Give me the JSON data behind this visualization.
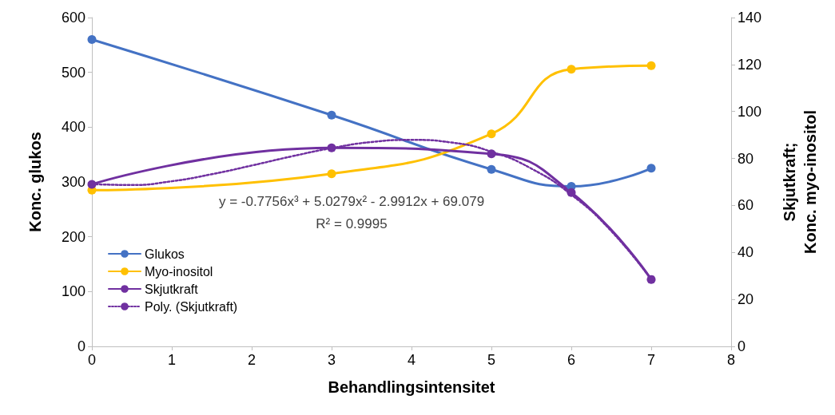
{
  "chart_data": {
    "type": "line",
    "xlabel": "Behandlingsintensitet",
    "ylabel": "Konc. glukos",
    "y2label": "Skjutkraft;\nKonc. myo-inositol",
    "x": [
      0,
      3,
      5,
      6,
      7
    ],
    "series": [
      {
        "name": "Glukos",
        "color": "#4472c4",
        "values": [
          560,
          422,
          323,
          292,
          325
        ]
      },
      {
        "name": "Myo-inositol",
        "color": "#ffc000",
        "axis": "y2",
        "values": [
          66.5,
          73.5,
          90.5,
          118,
          119.5
        ]
      },
      {
        "name": "Skjutkraft",
        "color": "#7030a0",
        "axis": "y2",
        "values": [
          69,
          84.5,
          82,
          65.5,
          28.5
        ]
      },
      {
        "name": "Poly. (Skjutkraft)",
        "color": "#7030a0",
        "axis": "y2",
        "marker": "none",
        "line_style": "dotted",
        "x": [
          0,
          0.5,
          1,
          1.5,
          2,
          2.5,
          3,
          3.5,
          4,
          4.5,
          5,
          5.5,
          6,
          6.5,
          7
        ],
        "values": [
          69.1,
          68.7,
          70.3,
          73.3,
          77.0,
          80.9,
          84.4,
          87.0,
          87.9,
          86.8,
          82.9,
          75.7,
          64.6,
          49.1,
          28.5
        ]
      }
    ],
    "xlim": [
      0,
      8
    ],
    "xticks": [
      0,
      1,
      2,
      3,
      4,
      5,
      6,
      7,
      8
    ],
    "ylim": [
      0,
      600
    ],
    "yticks": [
      0,
      100,
      200,
      300,
      400,
      500,
      600
    ],
    "y2lim": [
      0,
      140
    ],
    "y2ticks": [
      0,
      20,
      40,
      60,
      80,
      100,
      120,
      140
    ],
    "annotations": [
      "y = -0.7756x³ + 5.0279x² - 2.9912x + 69.079",
      "R² = 0.9995"
    ],
    "marker": "circle",
    "line_style": "solid",
    "grid": false,
    "legend": "bottom left"
  }
}
